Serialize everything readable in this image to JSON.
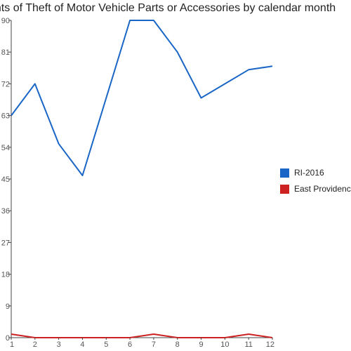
{
  "chart_data": {
    "type": "line",
    "title": "unts of Theft of Motor Vehicle Parts or Accessories by calendar month",
    "xlabel": "",
    "ylabel": "",
    "x": [
      1,
      2,
      3,
      4,
      5,
      6,
      7,
      8,
      9,
      10,
      11,
      12
    ],
    "x_tick_labels": [
      "1",
      "2",
      "3",
      "4",
      "5",
      "6",
      "7",
      "8",
      "9",
      "10",
      "11",
      "12"
    ],
    "y_ticks": [
      0,
      9,
      18,
      27,
      36,
      45,
      54,
      63,
      72,
      81,
      90
    ],
    "y_tick_labels": [
      "0",
      "9",
      "18",
      "27",
      "36",
      "45",
      "54",
      "63",
      "72",
      "81",
      "90"
    ],
    "ylim": [
      0,
      90
    ],
    "grid": false,
    "legend_position": "right",
    "series": [
      {
        "name": "RI-2016",
        "color": "#1a66c6",
        "values": [
          63,
          72,
          55,
          46,
          68,
          90,
          90,
          81,
          68,
          72,
          76,
          77
        ]
      },
      {
        "name": "East Providence",
        "color": "#cc2222",
        "values": [
          1,
          0,
          0,
          0,
          0,
          0,
          1,
          0,
          0,
          0,
          1,
          0
        ]
      }
    ]
  }
}
